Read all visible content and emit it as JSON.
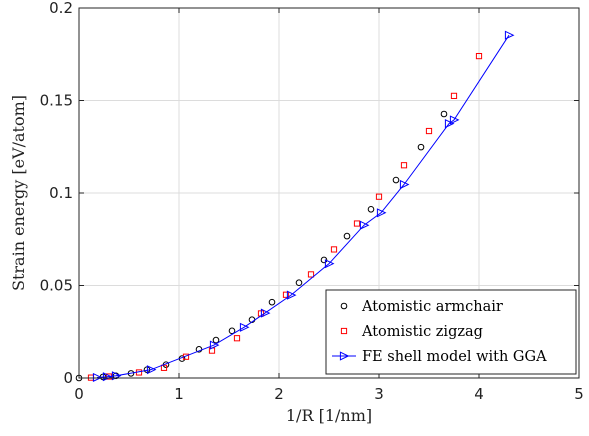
{
  "chart_data": {
    "type": "scatter",
    "title": "",
    "xlabel": "1/R [1/nm]",
    "ylabel": "Strain energy [eV/atom]",
    "xlim": [
      0,
      5
    ],
    "ylim": [
      0,
      0.2
    ],
    "xticks": [
      "0",
      "1",
      "2",
      "3",
      "4",
      "5"
    ],
    "yticks": [
      "0",
      "0.05",
      "0.1",
      "0.15",
      "0.2"
    ],
    "grid": true,
    "legend_position": "bottom-right",
    "series": [
      {
        "name": "Atomistic armchair",
        "marker": "circle",
        "color": "#000000",
        "line": false,
        "points": [
          [
            0.0,
            0.0
          ],
          [
            0.24,
            0.0006
          ],
          [
            0.37,
            0.0012
          ],
          [
            0.52,
            0.0025
          ],
          [
            0.68,
            0.0045
          ],
          [
            0.87,
            0.0072
          ],
          [
            1.03,
            0.0105
          ],
          [
            1.2,
            0.0155
          ],
          [
            1.37,
            0.0205
          ],
          [
            1.53,
            0.0255
          ],
          [
            1.73,
            0.0315
          ],
          [
            1.93,
            0.041
          ],
          [
            2.2,
            0.0515
          ],
          [
            2.45,
            0.0638
          ],
          [
            2.68,
            0.0767
          ],
          [
            2.92,
            0.0912
          ],
          [
            3.17,
            0.107
          ],
          [
            3.42,
            0.1248
          ],
          [
            3.65,
            0.1427
          ]
        ]
      },
      {
        "name": "Atomistic zigzag",
        "marker": "square",
        "color": "#ff0000",
        "line": false,
        "points": [
          [
            0.12,
            0.0002
          ],
          [
            0.3,
            0.0008
          ],
          [
            0.6,
            0.003
          ],
          [
            0.85,
            0.0055
          ],
          [
            1.07,
            0.0115
          ],
          [
            1.33,
            0.0148
          ],
          [
            1.58,
            0.0215
          ],
          [
            1.82,
            0.0349
          ],
          [
            2.07,
            0.045
          ],
          [
            2.32,
            0.056
          ],
          [
            2.55,
            0.0695
          ],
          [
            2.78,
            0.0835
          ],
          [
            3.0,
            0.098
          ],
          [
            3.25,
            0.115
          ],
          [
            3.5,
            0.1335
          ],
          [
            3.75,
            0.1525
          ],
          [
            4.0,
            0.174
          ]
        ]
      },
      {
        "name": "FE shell model with GGA",
        "marker": "triangle-right",
        "color": "#0000ff",
        "line": true,
        "points": [
          [
            0.18,
            0.0003
          ],
          [
            0.28,
            0.0007
          ],
          [
            0.37,
            0.0012
          ],
          [
            0.72,
            0.0045
          ],
          [
            1.35,
            0.0178
          ],
          [
            1.65,
            0.0274
          ],
          [
            1.86,
            0.0351
          ],
          [
            2.12,
            0.0448
          ],
          [
            2.5,
            0.0618
          ],
          [
            2.85,
            0.0826
          ],
          [
            3.02,
            0.0893
          ],
          [
            3.25,
            0.1046
          ],
          [
            3.7,
            0.1375
          ],
          [
            3.75,
            0.1395
          ],
          [
            4.3,
            0.1853
          ]
        ]
      }
    ]
  }
}
